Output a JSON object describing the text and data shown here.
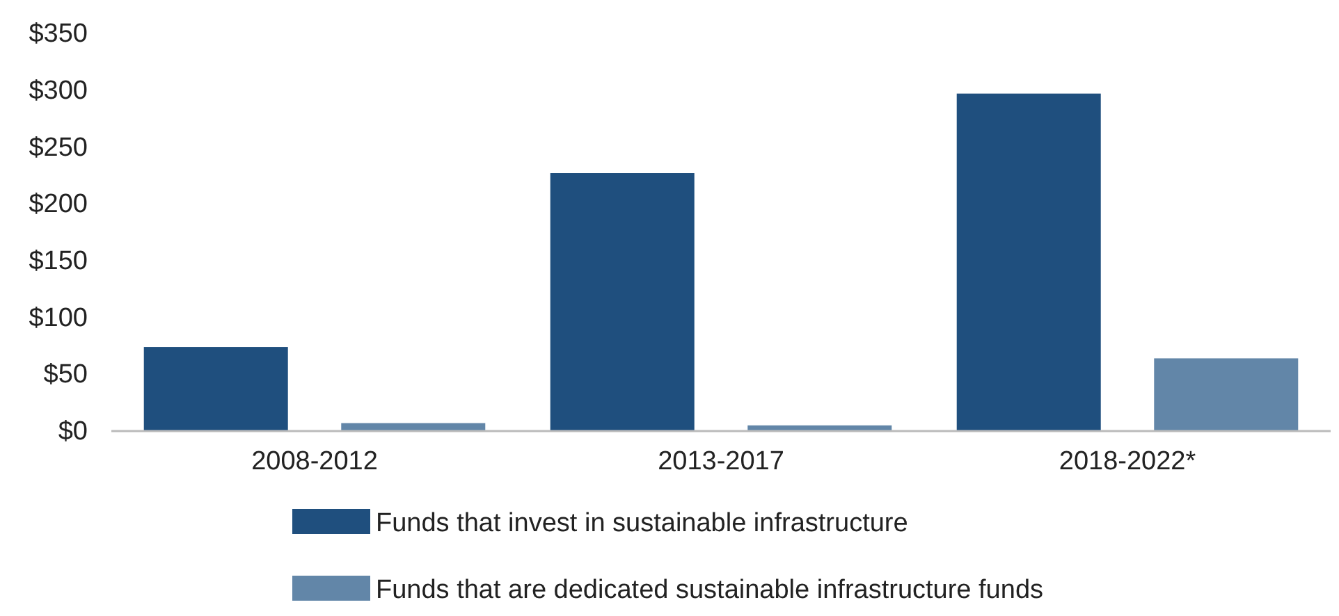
{
  "chart_data": {
    "type": "bar",
    "categories": [
      "2008-2012",
      "2013-2017",
      "2018-2022*"
    ],
    "series": [
      {
        "name": "Funds that invest in sustainable infrastructure",
        "color": "#1f4f7e",
        "values": [
          74,
          227,
          297
        ]
      },
      {
        "name": "Funds that are dedicated sustainable infrastructure funds",
        "color": "#6286a8",
        "values": [
          7,
          5,
          64
        ]
      }
    ],
    "ylim": [
      0,
      350
    ],
    "yticks": [
      {
        "value": 0,
        "label": "$0"
      },
      {
        "value": 50,
        "label": "$50"
      },
      {
        "value": 100,
        "label": "$100"
      },
      {
        "value": 150,
        "label": "$150"
      },
      {
        "value": 200,
        "label": "$200"
      },
      {
        "value": 250,
        "label": "$250"
      },
      {
        "value": 300,
        "label": "$300"
      },
      {
        "value": 350,
        "label": "$350"
      }
    ],
    "grid": false,
    "legend": "bottom"
  }
}
